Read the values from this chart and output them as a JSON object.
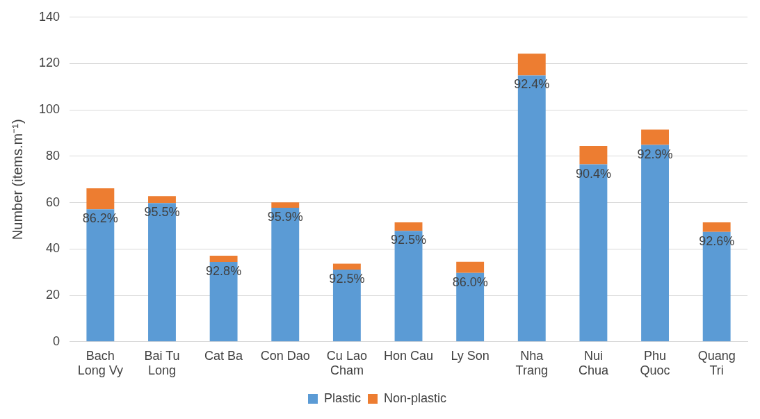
{
  "chart_data": {
    "type": "bar",
    "stacked": true,
    "ylabel": "Number (items.m⁻¹)",
    "categories": [
      "Bach Long Vy",
      "Bai Tu Long",
      "Cat Ba",
      "Con Dao",
      "Cu Lao Cham",
      "Hon Cau",
      "Ly Son",
      "Nha Trang",
      "Nui Chua",
      "Phu Quoc",
      "Quang Tri"
    ],
    "series": [
      {
        "name": "Plastic",
        "color": "#5b9bd5",
        "values": [
          57.1,
          59.8,
          34.4,
          57.8,
          31.1,
          47.8,
          29.7,
          114.9,
          76.5,
          84.9,
          47.4
        ]
      },
      {
        "name": "Non-plastic",
        "color": "#ed7d31",
        "values": [
          9.1,
          3.0,
          2.7,
          2.3,
          2.6,
          3.7,
          4.8,
          9.4,
          8.0,
          6.6,
          4.1
        ]
      }
    ],
    "annotations": [
      {
        "text": "86.2%",
        "x": "Bach Long Vy",
        "y": 57.1
      },
      {
        "text": "95.5%",
        "x": "Bai Tu Long",
        "y": 59.8
      },
      {
        "text": "92.8%",
        "x": "Cat Ba",
        "y": 34.4
      },
      {
        "text": "95.9%",
        "x": "Con Dao",
        "y": 57.8
      },
      {
        "text": "92.5%",
        "x": "Cu Lao Cham",
        "y": 31.1
      },
      {
        "text": "92.5%",
        "x": "Hon Cau",
        "y": 47.8
      },
      {
        "text": "86.0%",
        "x": "Ly Son",
        "y": 29.7
      },
      {
        "text": "92.4%",
        "x": "Nha Trang",
        "y": 114.9
      },
      {
        "text": "90.4%",
        "x": "Nui Chua",
        "y": 76.5
      },
      {
        "text": "92.9%",
        "x": "Phu Quoc",
        "y": 84.9
      },
      {
        "text": "92.6%",
        "x": "Quang Tri",
        "y": 47.4
      }
    ],
    "ylim": [
      0,
      140
    ],
    "yticks": [
      0,
      20,
      40,
      60,
      80,
      100,
      120,
      140
    ],
    "grid": "y",
    "legend": "bottom"
  }
}
